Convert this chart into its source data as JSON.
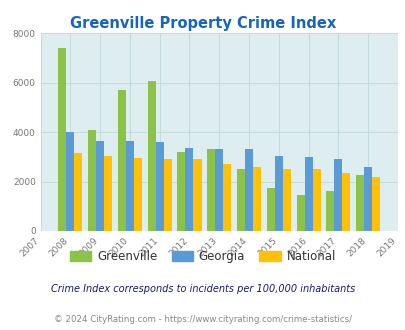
{
  "title": "Greenville Property Crime Index",
  "years": [
    2007,
    2008,
    2009,
    2010,
    2011,
    2012,
    2013,
    2014,
    2015,
    2016,
    2017,
    2018,
    2019
  ],
  "bar_years": [
    2008,
    2009,
    2010,
    2011,
    2012,
    2013,
    2014,
    2015,
    2016,
    2017,
    2018
  ],
  "greenville": [
    7400,
    4100,
    5700,
    6050,
    3200,
    3300,
    2500,
    1750,
    1450,
    1600,
    2250
  ],
  "georgia": [
    4000,
    3650,
    3650,
    3600,
    3350,
    3300,
    3300,
    3050,
    3000,
    2900,
    2600
  ],
  "national": [
    3150,
    3050,
    2950,
    2900,
    2900,
    2700,
    2600,
    2500,
    2500,
    2350,
    2200
  ],
  "greenville_color": "#8bc34a",
  "georgia_color": "#5b9bd5",
  "national_color": "#ffc107",
  "bg_color": "#deeef0",
  "title_color": "#1565c0",
  "ylim": [
    0,
    8000
  ],
  "yticks": [
    0,
    2000,
    4000,
    6000,
    8000
  ],
  "subtitle": "Crime Index corresponds to incidents per 100,000 inhabitants",
  "footer": "© 2024 CityRating.com - https://www.cityrating.com/crime-statistics/",
  "subtitle_color": "#1a1a6e",
  "footer_color": "#888888",
  "grid_color": "#c0d8d8",
  "bar_width": 0.27
}
